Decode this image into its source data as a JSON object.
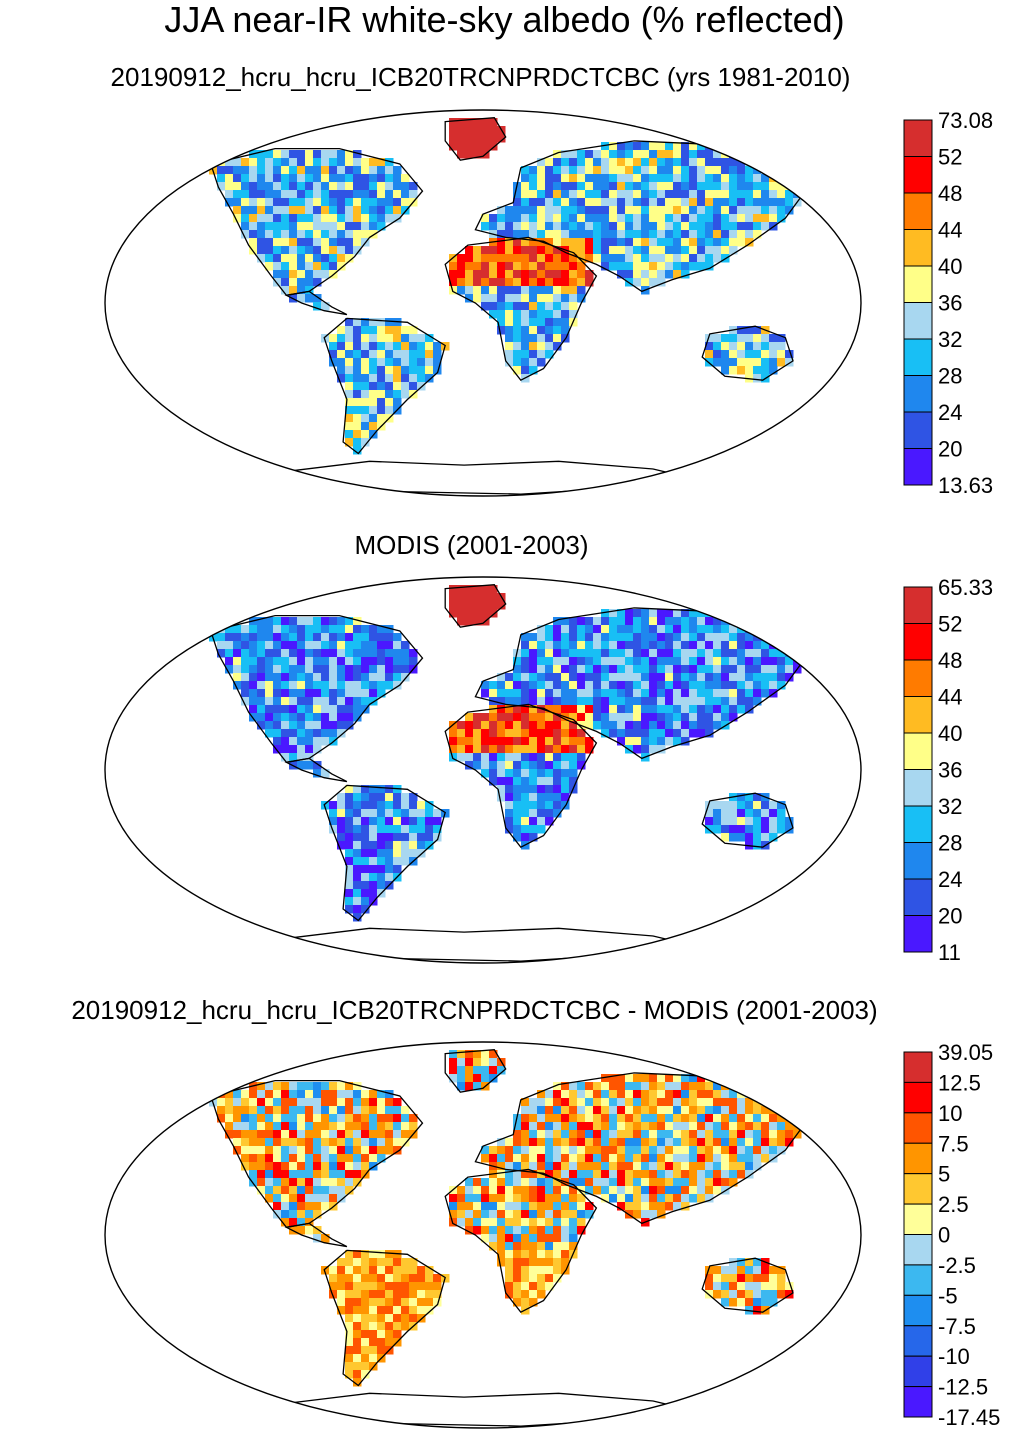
{
  "figure": {
    "title": "JJA near-IR white-sky albedo (% reflected)"
  },
  "panels": [
    {
      "subtitle": "20190912_hcru_hcru_ICB20TRCNPRDCTCBC (yrs 1981-2010)",
      "colorbar": {
        "labels": [
          "73.08",
          "52",
          "48",
          "44",
          "40",
          "36",
          "32",
          "28",
          "24",
          "20",
          "13.63"
        ],
        "colors": [
          "#d62e2e",
          "#ff0000",
          "#ff7b00",
          "#ffbb22",
          "#ffff88",
          "#a8d7f0",
          "#18bff5",
          "#1f87ee",
          "#2f54e4",
          "#4a18ff"
        ]
      }
    },
    {
      "subtitle": "MODIS (2001-2003)",
      "colorbar": {
        "labels": [
          "65.33",
          "52",
          "48",
          "44",
          "40",
          "36",
          "32",
          "28",
          "24",
          "20",
          "11"
        ],
        "colors": [
          "#d62e2e",
          "#ff0000",
          "#ff7b00",
          "#ffbb22",
          "#ffff88",
          "#a8d7f0",
          "#18bff5",
          "#1f87ee",
          "#2f54e4",
          "#4a18ff"
        ]
      }
    },
    {
      "subtitle": "20190912_hcru_hcru_ICB20TRCNPRDCTCBC - MODIS (2001-2003)",
      "colorbar": {
        "labels": [
          "39.05",
          "12.5",
          "10",
          "7.5",
          "5",
          "2.5",
          "0",
          "-2.5",
          "-5",
          "-7.5",
          "-10",
          "-12.5",
          "-17.45"
        ],
        "colors": [
          "#d62e2e",
          "#ff0000",
          "#ff5500",
          "#ff9500",
          "#ffc830",
          "#ffff99",
          "#a8d7f0",
          "#3cb8f0",
          "#1e8ef0",
          "#2667ea",
          "#3040e8",
          "#4a18ff"
        ]
      }
    }
  ]
}
